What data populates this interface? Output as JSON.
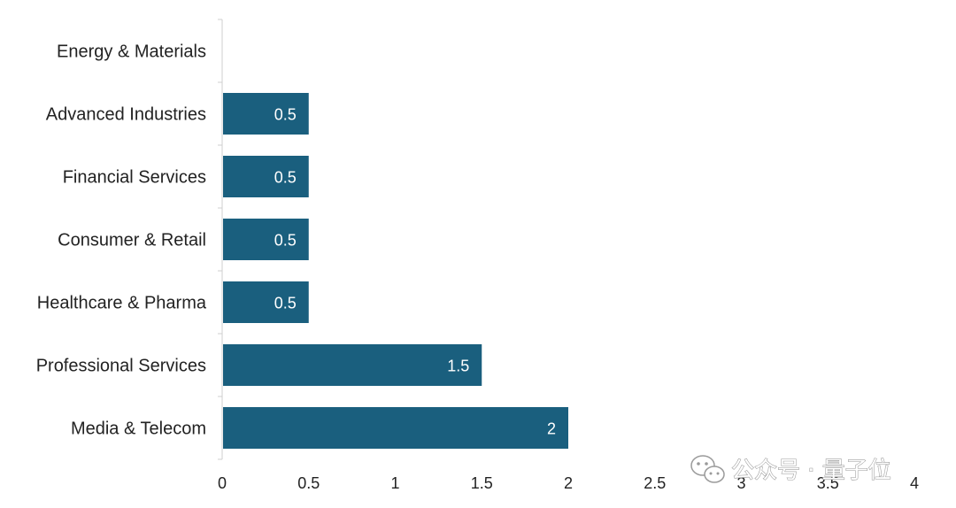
{
  "chart_data": {
    "type": "bar",
    "orientation": "horizontal",
    "categories": [
      "Energy & Materials",
      "Advanced Industries",
      "Financial Services",
      "Consumer & Retail",
      "Healthcare & Pharma",
      "Professional Services",
      "Media & Telecom"
    ],
    "values": [
      0,
      0.5,
      0.5,
      0.5,
      0.5,
      1.5,
      2
    ],
    "data_labels": [
      "",
      "0.5",
      "0.5",
      "0.5",
      "0.5",
      "1.5",
      "2"
    ],
    "x_ticks": [
      "0",
      "0.5",
      "1",
      "1.5",
      "2",
      "2.5",
      "3",
      "3.5",
      "4"
    ],
    "xlim": [
      0,
      4
    ],
    "grid": false,
    "bar_color": "#1a5f7e"
  },
  "watermark": {
    "text": "公众号 · 量子位",
    "icon": "wechat-icon"
  }
}
